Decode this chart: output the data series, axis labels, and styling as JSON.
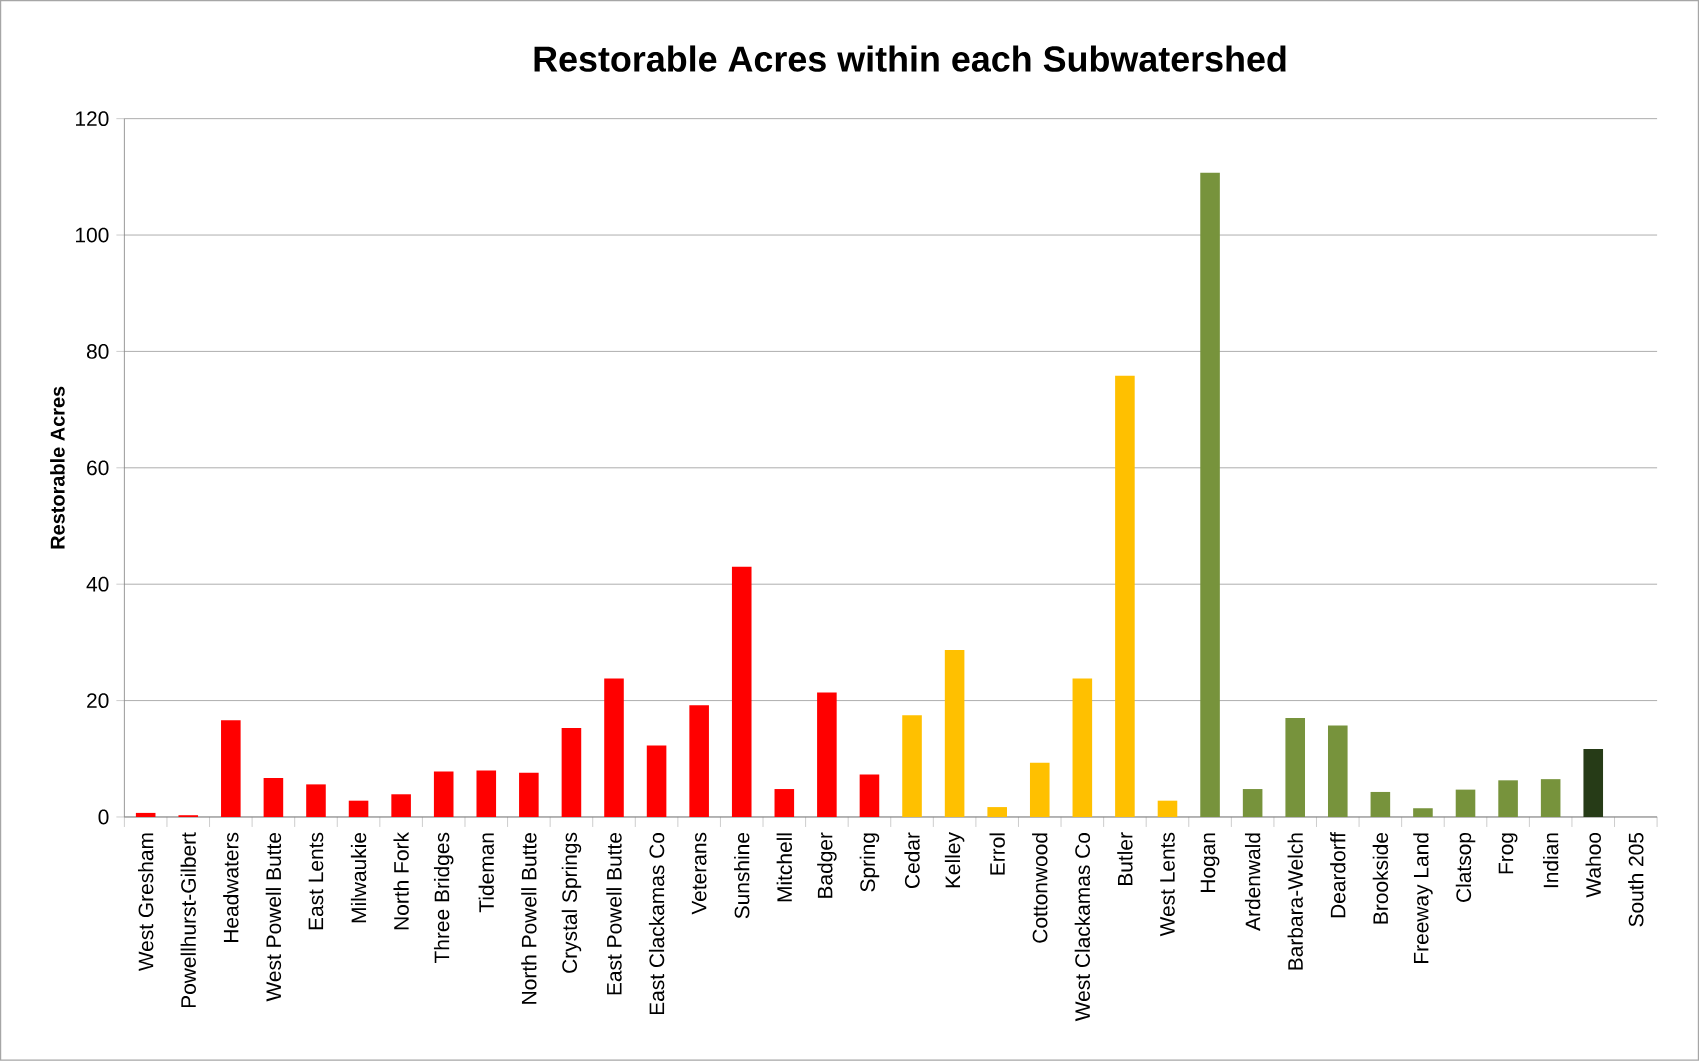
{
  "chart_data": {
    "type": "bar",
    "title": "Restorable Acres within each Subwatershed",
    "ylabel": "Restorable Acres",
    "categories": [
      "West Gresham",
      "Powellhurst-Gilbert",
      "Headwaters",
      "West Powell Butte",
      "East Lents",
      "Milwaukie",
      "North Fork",
      "Three Bridges",
      "Tideman",
      "North Powell Butte",
      "Crystal Springs",
      "East Powell Butte",
      "East Clackamas Co",
      "Veterans",
      "Sunshine",
      "Mitchell",
      "Badger",
      "Spring",
      "Cedar",
      "Kelley",
      "Errol",
      "Cottonwood",
      "West Clackamas Co",
      "Butler",
      "West Lents",
      "Hogan",
      "Ardenwald",
      "Barbara-Welch",
      "Deardorff",
      "Brookside",
      "Freeway Land",
      "Clatsop",
      "Frog",
      "Indian",
      "Wahoo",
      "South 205"
    ],
    "values": [
      0.7,
      0.3,
      16.6,
      6.7,
      5.6,
      2.8,
      3.9,
      7.8,
      8.0,
      7.6,
      15.3,
      23.8,
      12.3,
      19.2,
      43.0,
      4.8,
      21.4,
      7.3,
      17.5,
      28.7,
      1.7,
      9.3,
      23.8,
      75.8,
      2.8,
      110.7,
      4.8,
      17.0,
      15.7,
      4.3,
      1.5,
      4.7,
      6.3,
      6.5,
      11.7,
      0
    ],
    "colors": [
      "#ff0000",
      "#ff0000",
      "#ff0000",
      "#ff0000",
      "#ff0000",
      "#ff0000",
      "#ff0000",
      "#ff0000",
      "#ff0000",
      "#ff0000",
      "#ff0000",
      "#ff0000",
      "#ff0000",
      "#ff0000",
      "#ff0000",
      "#ff0000",
      "#ff0000",
      "#ff0000",
      "#ffc000",
      "#ffc000",
      "#ffc000",
      "#ffc000",
      "#ffc000",
      "#ffc000",
      "#ffc000",
      "#77933c",
      "#77933c",
      "#77933c",
      "#77933c",
      "#77933c",
      "#77933c",
      "#77933c",
      "#77933c",
      "#77933c",
      "#263b17",
      "#77933c"
    ],
    "ylim": [
      0,
      120
    ],
    "yticks": [
      0,
      20,
      40,
      60,
      80,
      100,
      120
    ],
    "grid": "y"
  }
}
